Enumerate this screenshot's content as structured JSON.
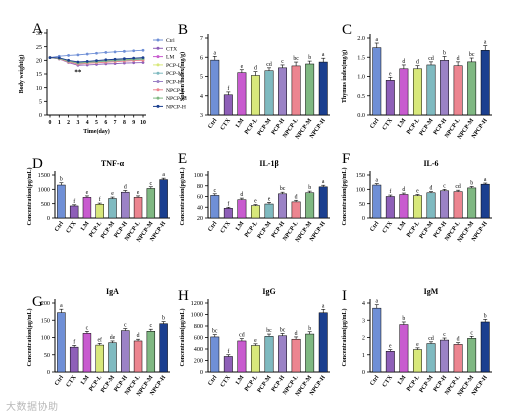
{
  "colors": {
    "Ctrl": "#6f8fd6",
    "CTX": "#8e5fb8",
    "LM": "#c85bcf",
    "PCP-L": "#d8e87b",
    "PCP-M": "#7fbac0",
    "PCP-H": "#9b82c6",
    "NPCP-L": "#ec8590",
    "NPCP-M": "#7fb882",
    "NPCP-H": "#1b3f8f"
  },
  "chart_data": [
    {
      "type": "line",
      "panel_letter": "A",
      "xlabel": "Time(day)",
      "ylabel": "Body weight(g)",
      "x": [
        0,
        1,
        2,
        3,
        4,
        5,
        6,
        7,
        8,
        9,
        10
      ],
      "xticks": [
        "0",
        "1",
        "2",
        "3",
        "4",
        "5",
        "6",
        "7",
        "8",
        "9",
        "10"
      ],
      "ylim": [
        0,
        30
      ],
      "yticks": [
        "0",
        "5",
        "10",
        "15",
        "20",
        "25",
        "30"
      ],
      "annotation": "**",
      "legend_position": "right",
      "series": [
        {
          "name": "Ctrl",
          "values": [
            21,
            21.5,
            21.8,
            22,
            22.3,
            22.6,
            22.9,
            23.1,
            23.3,
            23.5,
            23.7
          ]
        },
        {
          "name": "CTX",
          "values": [
            21,
            20.5,
            19.2,
            18.2,
            18.3,
            18.5,
            18.7,
            18.8,
            19,
            19.1,
            19.2
          ]
        },
        {
          "name": "LM",
          "values": [
            21,
            20.8,
            19.8,
            19,
            19.2,
            19.5,
            19.8,
            20,
            20.2,
            20.4,
            20.6
          ]
        },
        {
          "name": "PCP-L",
          "values": [
            21,
            20.6,
            19.5,
            18.7,
            19,
            19.2,
            19.4,
            19.6,
            19.8,
            20,
            20.1
          ]
        },
        {
          "name": "PCP-M",
          "values": [
            21,
            20.7,
            19.6,
            18.9,
            19.1,
            19.4,
            19.6,
            19.8,
            20,
            20.2,
            20.4
          ]
        },
        {
          "name": "PCP-H",
          "values": [
            21,
            20.8,
            19.9,
            19.2,
            19.4,
            19.7,
            20,
            20.2,
            20.4,
            20.6,
            20.8
          ]
        },
        {
          "name": "NPCP-L",
          "values": [
            21,
            20.6,
            19.4,
            18.6,
            18.9,
            19.1,
            19.3,
            19.5,
            19.7,
            19.9,
            20
          ]
        },
        {
          "name": "NPCP-M",
          "values": [
            21,
            20.7,
            19.7,
            19,
            19.3,
            19.5,
            19.8,
            20,
            20.2,
            20.4,
            20.6
          ]
        },
        {
          "name": "NPCP-H",
          "values": [
            21,
            20.9,
            20,
            19.4,
            19.6,
            19.9,
            20.2,
            20.4,
            20.6,
            20.8,
            21
          ]
        }
      ]
    },
    {
      "type": "bar",
      "panel_letter": "B",
      "title": "",
      "ylabel": "Spleen index(mg/g)",
      "categories": [
        "Ctrl",
        "CTX",
        "LM",
        "PCP-L",
        "PCP-M",
        "PCP-H",
        "NPCP-L",
        "NPCP-M",
        "NPCP-H"
      ],
      "values": [
        5.85,
        4.05,
        5.2,
        5.05,
        5.3,
        5.45,
        5.55,
        5.65,
        5.75
      ],
      "errors": [
        0.2,
        0.15,
        0.15,
        0.2,
        0.15,
        0.15,
        0.2,
        0.15,
        0.2
      ],
      "letters": [
        "a",
        "f",
        "e",
        "d",
        "cd",
        "c",
        "bc",
        "b",
        "a"
      ],
      "ylim": [
        3,
        7
      ],
      "yticks": [
        "3",
        "4",
        "5",
        "6",
        "7"
      ]
    },
    {
      "type": "bar",
      "panel_letter": "C",
      "title": "",
      "ylabel": "Thymus index(mg/g)",
      "categories": [
        "Ctrl",
        "CTX",
        "LM",
        "PCP-L",
        "PCP-M",
        "PCP-H",
        "NPCP-L",
        "NPCP-M",
        "NPCP-H"
      ],
      "values": [
        1.75,
        0.9,
        1.2,
        1.2,
        1.3,
        1.42,
        1.28,
        1.38,
        1.68
      ],
      "errors": [
        0.12,
        0.08,
        0.1,
        0.08,
        0.08,
        0.1,
        0.1,
        0.1,
        0.12
      ],
      "letters": [
        "a",
        "e",
        "d",
        "d",
        "cd",
        "b",
        "d",
        "bc",
        "a"
      ],
      "ylim": [
        0,
        2
      ],
      "yticks": [
        "0.0",
        "0.5",
        "1.0",
        "1.5",
        "2.0"
      ]
    },
    {
      "type": "bar",
      "panel_letter": "D",
      "title": "TNF-α",
      "ylabel": "Concentration(pg/mL)",
      "categories": [
        "Ctrl",
        "CTX",
        "LM",
        "PCP-L",
        "PCP-M",
        "PCP-H",
        "NPCP-L",
        "NPCP-M",
        "NPCP-H"
      ],
      "values": [
        1150,
        420,
        720,
        480,
        680,
        900,
        720,
        1030,
        1340
      ],
      "errors": [
        80,
        40,
        50,
        40,
        50,
        60,
        50,
        60,
        50
      ],
      "letters": [
        "b",
        "f",
        "e",
        "f",
        "e",
        "d",
        "e",
        "c",
        "a"
      ],
      "ylim": [
        0,
        1500
      ],
      "yticks": [
        "0",
        "500",
        "1000",
        "1500"
      ]
    },
    {
      "type": "bar",
      "panel_letter": "E",
      "title": "IL-1β",
      "ylabel": "Concentration(pg/mL)",
      "categories": [
        "Ctrl",
        "CTX",
        "LM",
        "PCP-L",
        "PCP-M",
        "PCP-H",
        "NPCP-L",
        "NPCP-M",
        "NPCP-H"
      ],
      "values": [
        62,
        38,
        54,
        43,
        46,
        65,
        50,
        67,
        78
      ],
      "errors": [
        3,
        2,
        3,
        2,
        3,
        3,
        3,
        3,
        3
      ],
      "letters": [
        "c",
        "f",
        "d",
        "e",
        "e",
        "bc",
        "d",
        "b",
        "a"
      ],
      "ylim": [
        20,
        100
      ],
      "yticks": [
        "20",
        "40",
        "60",
        "80",
        "100"
      ]
    },
    {
      "type": "bar",
      "panel_letter": "F",
      "title": "IL-6",
      "ylabel": "Concentration(pg/mL)",
      "categories": [
        "Ctrl",
        "CTX",
        "LM",
        "PCP-L",
        "PCP-M",
        "PCP-H",
        "NPCP-L",
        "NPCP-M",
        "NPCP-H"
      ],
      "values": [
        115,
        75,
        82,
        78,
        88,
        95,
        92,
        105,
        118
      ],
      "errors": [
        5,
        5,
        5,
        4,
        4,
        5,
        5,
        5,
        4
      ],
      "letters": [
        "a",
        "f",
        "d",
        "e",
        "d",
        "c",
        "cd",
        "b",
        "a"
      ],
      "ylim": [
        0,
        150
      ],
      "yticks": [
        "0",
        "50",
        "100",
        "150"
      ]
    },
    {
      "type": "bar",
      "panel_letter": "G",
      "title": "IgA",
      "ylabel": "Concentration(μg/mL)",
      "categories": [
        "Ctrl",
        "CTX",
        "LM",
        "PCP-L",
        "PCP-M",
        "PCP-H",
        "NPCP-L",
        "NPCP-M",
        "NPCP-H"
      ],
      "values": [
        172,
        72,
        112,
        78,
        85,
        120,
        90,
        118,
        140
      ],
      "errors": [
        10,
        5,
        6,
        5,
        5,
        6,
        5,
        6,
        6
      ],
      "letters": [
        "a",
        "f",
        "c",
        "ef",
        "de",
        "c",
        "d",
        "c",
        "b"
      ],
      "ylim": [
        0,
        200
      ],
      "yticks": [
        "0",
        "50",
        "100",
        "150",
        "200"
      ]
    },
    {
      "type": "bar",
      "panel_letter": "H",
      "title": "IgG",
      "ylabel": "Concentration(μg/mL)",
      "categories": [
        "Ctrl",
        "CTX",
        "LM",
        "PCP-L",
        "PCP-M",
        "PCP-H",
        "NPCP-L",
        "NPCP-M",
        "NPCP-H"
      ],
      "values": [
        610,
        270,
        540,
        460,
        620,
        630,
        570,
        660,
        1030
      ],
      "errors": [
        40,
        30,
        40,
        30,
        40,
        40,
        40,
        40,
        60
      ],
      "letters": [
        "bc",
        "f",
        "cd",
        "e",
        "bc",
        "bc",
        "d",
        "b",
        "a"
      ],
      "ylim": [
        0,
        1200
      ],
      "yticks": [
        "0",
        "200",
        "400",
        "600",
        "800",
        "1000",
        "1200"
      ]
    },
    {
      "type": "bar",
      "panel_letter": "I",
      "title": "IgM",
      "ylabel": "Concentration(μg/mL)",
      "categories": [
        "Ctrl",
        "CTX",
        "LM",
        "PCP-L",
        "PCP-M",
        "PCP-H",
        "NPCP-L",
        "NPCP-M",
        "NPCP-H"
      ],
      "values": [
        3.7,
        1.2,
        2.75,
        1.3,
        1.65,
        1.85,
        1.6,
        1.95,
        2.9
      ],
      "errors": [
        0.2,
        0.1,
        0.15,
        0.1,
        0.1,
        0.12,
        0.1,
        0.12,
        0.15
      ],
      "letters": [
        "a",
        "e",
        "b",
        "e",
        "cd",
        "c",
        "d",
        "c",
        "b"
      ],
      "ylim": [
        0,
        4
      ],
      "yticks": [
        "0",
        "1",
        "2",
        "3",
        "4"
      ]
    }
  ],
  "watermark": "大数据协助"
}
